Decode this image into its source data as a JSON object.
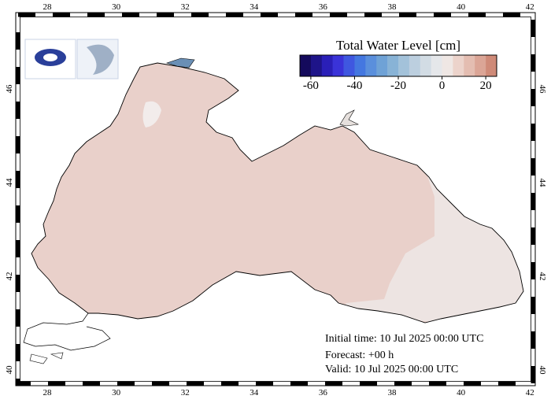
{
  "map": {
    "lon_ticks": [
      28,
      30,
      32,
      34,
      36,
      38,
      40,
      42
    ],
    "lat_ticks": [
      40,
      42,
      44,
      46
    ],
    "colorbar": {
      "title": "Total Water Level [cm]",
      "range": [
        -65,
        25
      ],
      "ticks": [
        -60,
        -40,
        -20,
        0,
        20
      ],
      "colors": [
        "#140a5c",
        "#1e1489",
        "#2a1fb8",
        "#3a33d8",
        "#3f57e0",
        "#4477e0",
        "#5a8fdc",
        "#6fa2d6",
        "#88b3d6",
        "#a3c2da",
        "#bccfdf",
        "#d2dce4",
        "#e5e7ea",
        "#efe7e4",
        "#ecd3cb",
        "#e4bdb1",
        "#dba596",
        "#cf8a78"
      ]
    },
    "info": {
      "initial_time": "Initial time: 10 Jul 2025 00:00 UTC",
      "forecast": "Forecast: +00 h",
      "valid": "Valid: 10 Jul 2025 00:00 UTC"
    }
  }
}
